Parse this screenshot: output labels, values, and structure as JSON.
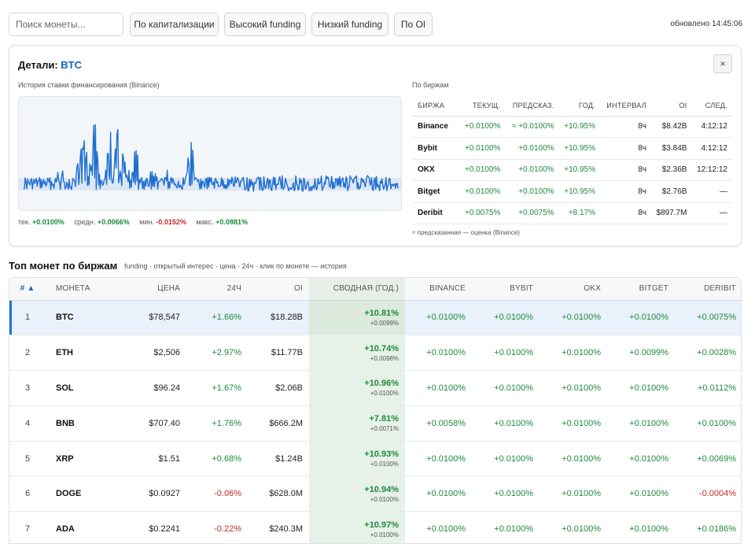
{
  "toolbar": {
    "search_placeholder": "Поиск монеты...",
    "buttons": [
      "По капитализации",
      "Высокий funding",
      "Низкий funding",
      "По OI"
    ],
    "updated": "обновлено 14:45:06"
  },
  "details": {
    "title_prefix": "Детали:",
    "coin": "BTC",
    "close": "×",
    "history_label": "История ставки финансирования (Binance)",
    "stats": {
      "current_label": "тек.",
      "current": "+0.0100%",
      "avg_label": "средн.",
      "avg": "+0.0066%",
      "min_label": "мин.",
      "min": "-0.0152%",
      "max_label": "макс.",
      "max": "+0.0881%"
    },
    "exchanges_label": "По биржам",
    "exchange_headers": [
      "Биржа",
      "Текущ.",
      "Предсказ.",
      "Год.",
      "Интервал",
      "OI",
      "След."
    ],
    "exchange_rows": [
      [
        "Binance",
        "+0.0100%",
        "≈ +0.0100%",
        "+10.95%",
        "8ч",
        "$8.42B",
        "4:12:12"
      ],
      [
        "Bybit",
        "+0.0100%",
        "+0.0100%",
        "+10.95%",
        "8ч",
        "$3.84B",
        "4:12:12"
      ],
      [
        "OKX",
        "+0.0100%",
        "+0.0100%",
        "+10.95%",
        "8ч",
        "$2.36B",
        "12:12:12"
      ],
      [
        "Bitget",
        "+0.0100%",
        "+0.0100%",
        "+10.95%",
        "8ч",
        "$2.76B",
        "—"
      ],
      [
        "Deribit",
        "+0.0075%",
        "+0.0075%",
        "+8.17%",
        "8ч",
        "$897.7M",
        "—"
      ]
    ],
    "exchange_note": "≈ предсказанная — оценка (Binance)"
  },
  "top": {
    "title": "Топ монет по биржам",
    "subtitle": "funding · открытый интерес · цена · 24ч · клик по монете — история",
    "headers": [
      "# ▲",
      "Монета",
      "Цена",
      "24ч",
      "OI",
      "Сводная (год.)",
      "Binance",
      "Bybit",
      "OKX",
      "Bitget",
      "Deribit"
    ],
    "rows": [
      {
        "n": "1",
        "sym": "BTC",
        "price": "$78,547",
        "ch": "+1.66%",
        "oi": "$18.28B",
        "ann": "+10.81%",
        "avg": "+0.0099%",
        "ex": [
          "+0.0100%",
          "+0.0100%",
          "+0.0100%",
          "+0.0100%",
          "+0.0075%"
        ]
      },
      {
        "n": "2",
        "sym": "ETH",
        "price": "$2,506",
        "ch": "+2.97%",
        "oi": "$11.77B",
        "ann": "+10.74%",
        "avg": "+0.0098%",
        "ex": [
          "+0.0100%",
          "+0.0100%",
          "+0.0100%",
          "+0.0099%",
          "+0.0028%"
        ]
      },
      {
        "n": "3",
        "sym": "SOL",
        "price": "$96.24",
        "ch": "+1.67%",
        "oi": "$2.06B",
        "ann": "+10.96%",
        "avg": "+0.0100%",
        "ex": [
          "+0.0100%",
          "+0.0100%",
          "+0.0100%",
          "+0.0100%",
          "+0.0112%"
        ]
      },
      {
        "n": "4",
        "sym": "BNB",
        "price": "$707.40",
        "ch": "+1.76%",
        "oi": "$666.2M",
        "ann": "+7.81%",
        "avg": "+0.0071%",
        "ex": [
          "+0.0058%",
          "+0.0100%",
          "+0.0100%",
          "+0.0100%",
          "+0.0100%"
        ]
      },
      {
        "n": "5",
        "sym": "XRP",
        "price": "$1.51",
        "ch": "+0.68%",
        "oi": "$1.24B",
        "ann": "+10.93%",
        "avg": "+0.0100%",
        "ex": [
          "+0.0100%",
          "+0.0100%",
          "+0.0100%",
          "+0.0100%",
          "+0.0069%"
        ]
      },
      {
        "n": "6",
        "sym": "DOGE",
        "price": "$0.0927",
        "ch": "-0.06%",
        "oi": "$628.0M",
        "ann": "+10.94%",
        "avg": "+0.0100%",
        "ex": [
          "+0.0100%",
          "+0.0100%",
          "+0.0100%",
          "+0.0100%",
          "-0.0004%"
        ]
      },
      {
        "n": "7",
        "sym": "ADA",
        "price": "$0.2241",
        "ch": "-0.22%",
        "oi": "$240.3M",
        "ann": "+10.97%",
        "avg": "+0.0100%",
        "ex": [
          "+0.0100%",
          "+0.0100%",
          "+0.0100%",
          "+0.0100%",
          "+0.0186%"
        ]
      }
    ]
  },
  "colors": {
    "accent": "#1565c0",
    "positive": "#1e8a3c",
    "negative": "#c62828",
    "line": "#1f6fd1"
  }
}
